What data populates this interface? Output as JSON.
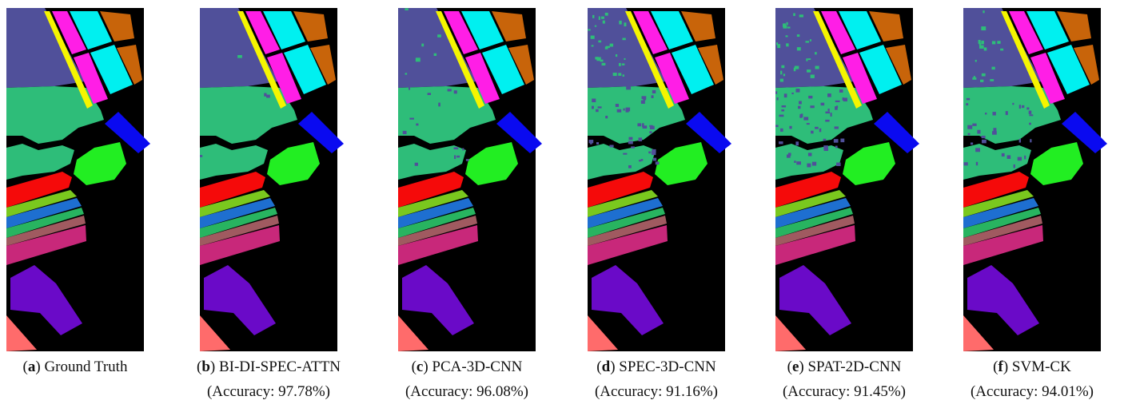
{
  "panels": [
    {
      "caption": [
        {
          "text": "(",
          "bold": false
        },
        {
          "text": "a",
          "bold": true
        },
        {
          "text": ") Ground Truth",
          "bold": false
        }
      ]
    },
    {
      "caption": [
        {
          "text": "(",
          "bold": false
        },
        {
          "text": "b",
          "bold": true
        },
        {
          "text": ") BI-DI-SPEC-ATTN",
          "bold": false
        }
      ],
      "accuracy": "(Accuracy: 97.78%)"
    },
    {
      "caption": [
        {
          "text": "(",
          "bold": false
        },
        {
          "text": "c",
          "bold": true
        },
        {
          "text": ") PCA-3D-CNN",
          "bold": false
        }
      ],
      "accuracy": "(Accuracy: 96.08%)"
    },
    {
      "caption": [
        {
          "text": "(",
          "bold": false
        },
        {
          "text": "d",
          "bold": true
        },
        {
          "text": ") SPEC-3D-CNN",
          "bold": false
        }
      ],
      "accuracy": "(Accuracy: 91.16%)"
    },
    {
      "caption": [
        {
          "text": "(",
          "bold": false
        },
        {
          "text": "e",
          "bold": true
        },
        {
          "text": ") SPAT-2D-CNN",
          "bold": false
        }
      ],
      "accuracy": "(Accuracy: 91.45%)"
    },
    {
      "caption": [
        {
          "text": "(",
          "bold": false
        },
        {
          "text": "f",
          "bold": true
        },
        {
          "text": ") SVM-CK",
          "bold": false
        }
      ],
      "accuracy": "(Accuracy: 94.01%)"
    }
  ]
}
